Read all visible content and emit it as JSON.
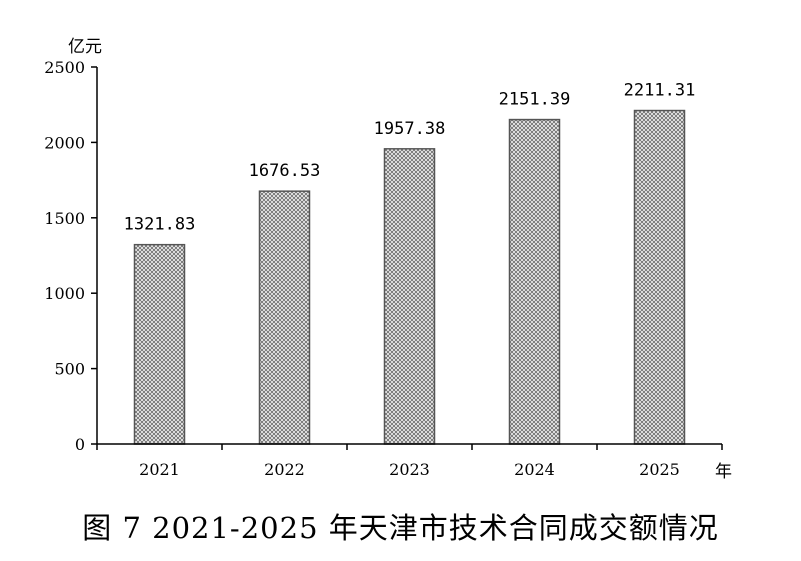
{
  "chart_data": {
    "type": "bar",
    "categories": [
      "2021",
      "2022",
      "2023",
      "2024",
      "2025"
    ],
    "values": [
      1321.83,
      1676.53,
      1957.38,
      2151.39,
      2211.31
    ],
    "value_labels": [
      "1321.83",
      "1676.53",
      "1957.38",
      "2151.39",
      "2211.31"
    ],
    "ylabel": "亿元",
    "xlabel": "年",
    "ylim": [
      0,
      2500
    ],
    "yticks": [
      "0",
      "500",
      "1000",
      "1500",
      "2000",
      "2500"
    ],
    "grid": false,
    "legend": "none",
    "bar_fill": "crosshatch",
    "colors": {
      "bar_stroke": "#555555",
      "hatch": "#777777",
      "axis": "#000000"
    }
  },
  "caption": "图 7   2021-2025 年天津市技术合同成交额情况"
}
